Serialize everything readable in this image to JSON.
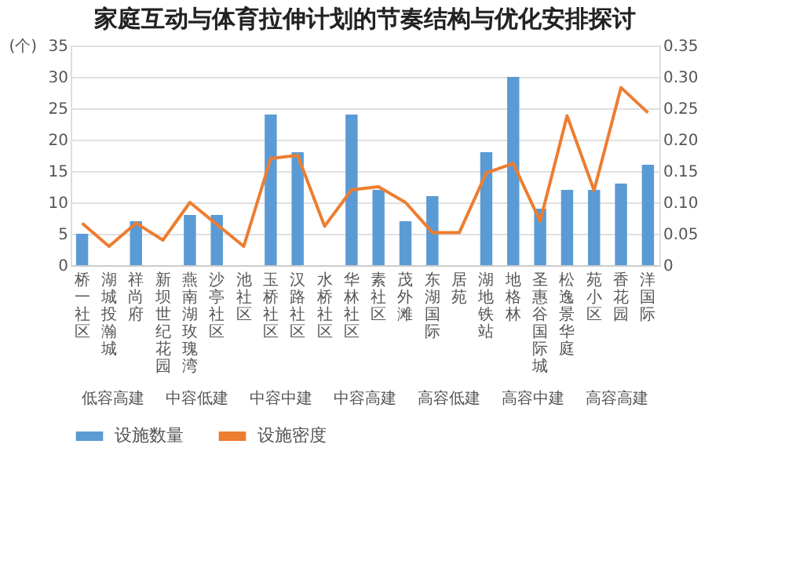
{
  "chart_data": {
    "type": "bar",
    "title": "家庭互动与体育拉伸计划的节奏结构与优化安排探讨",
    "categories": [
      "桥一社区",
      "湖城投瀚城",
      "祥尚府",
      "新坝世纪花园",
      "燕南湖玫瑰湾",
      "沙亭社区",
      "池社区",
      "玉桥社区",
      "汉路社区",
      "水桥社区",
      "华林社区",
      "素社区",
      "茂外滩",
      "东湖国际",
      "居苑",
      "湖地铁站",
      "地格林",
      "圣惠谷国际城",
      "松逸景华庭",
      "苑小区",
      "香花园",
      "洋国际"
    ],
    "series": [
      {
        "name": "设施数量",
        "color": "#5b9bd5",
        "values": [
          5,
          null,
          7,
          null,
          8,
          8,
          null,
          24,
          18,
          null,
          24,
          12,
          7,
          11,
          null,
          18,
          30,
          9,
          12,
          12,
          13,
          16
        ]
      },
      {
        "name": "设施密度",
        "type": "line",
        "axis": "y2",
        "color": "#ed7d31",
        "values": [
          0.067,
          0.03,
          0.067,
          0.04,
          0.1,
          0.065,
          0.03,
          0.17,
          0.175,
          0.062,
          0.12,
          0.125,
          0.1,
          0.052,
          0.052,
          0.147,
          0.162,
          0.07,
          0.238,
          0.119,
          0.283,
          0.243
        ]
      }
    ],
    "ylabel": "(个)",
    "ylim": [
      0,
      35
    ],
    "yticks": [
      0,
      5,
      10,
      15,
      20,
      25,
      30,
      35
    ],
    "y2lim": [
      0,
      0.35
    ],
    "y2ticks": [
      {
        "value": 0,
        "label": "0"
      },
      {
        "value": 0.05,
        "label": "0.05"
      },
      {
        "value": 0.1,
        "label": "0.10"
      },
      {
        "value": 0.15,
        "label": "0.15"
      },
      {
        "value": 0.2,
        "label": "0.20"
      },
      {
        "value": 0.25,
        "label": "0.25"
      },
      {
        "value": 0.3,
        "label": "0.30"
      },
      {
        "value": 0.35,
        "label": "0.35"
      }
    ],
    "annotations": [
      "低容高建",
      "中容低建",
      "中容中建",
      "中容高建",
      "高容低建",
      "高容中建",
      "高容高建"
    ],
    "grid": "y",
    "legend": "bottom"
  }
}
